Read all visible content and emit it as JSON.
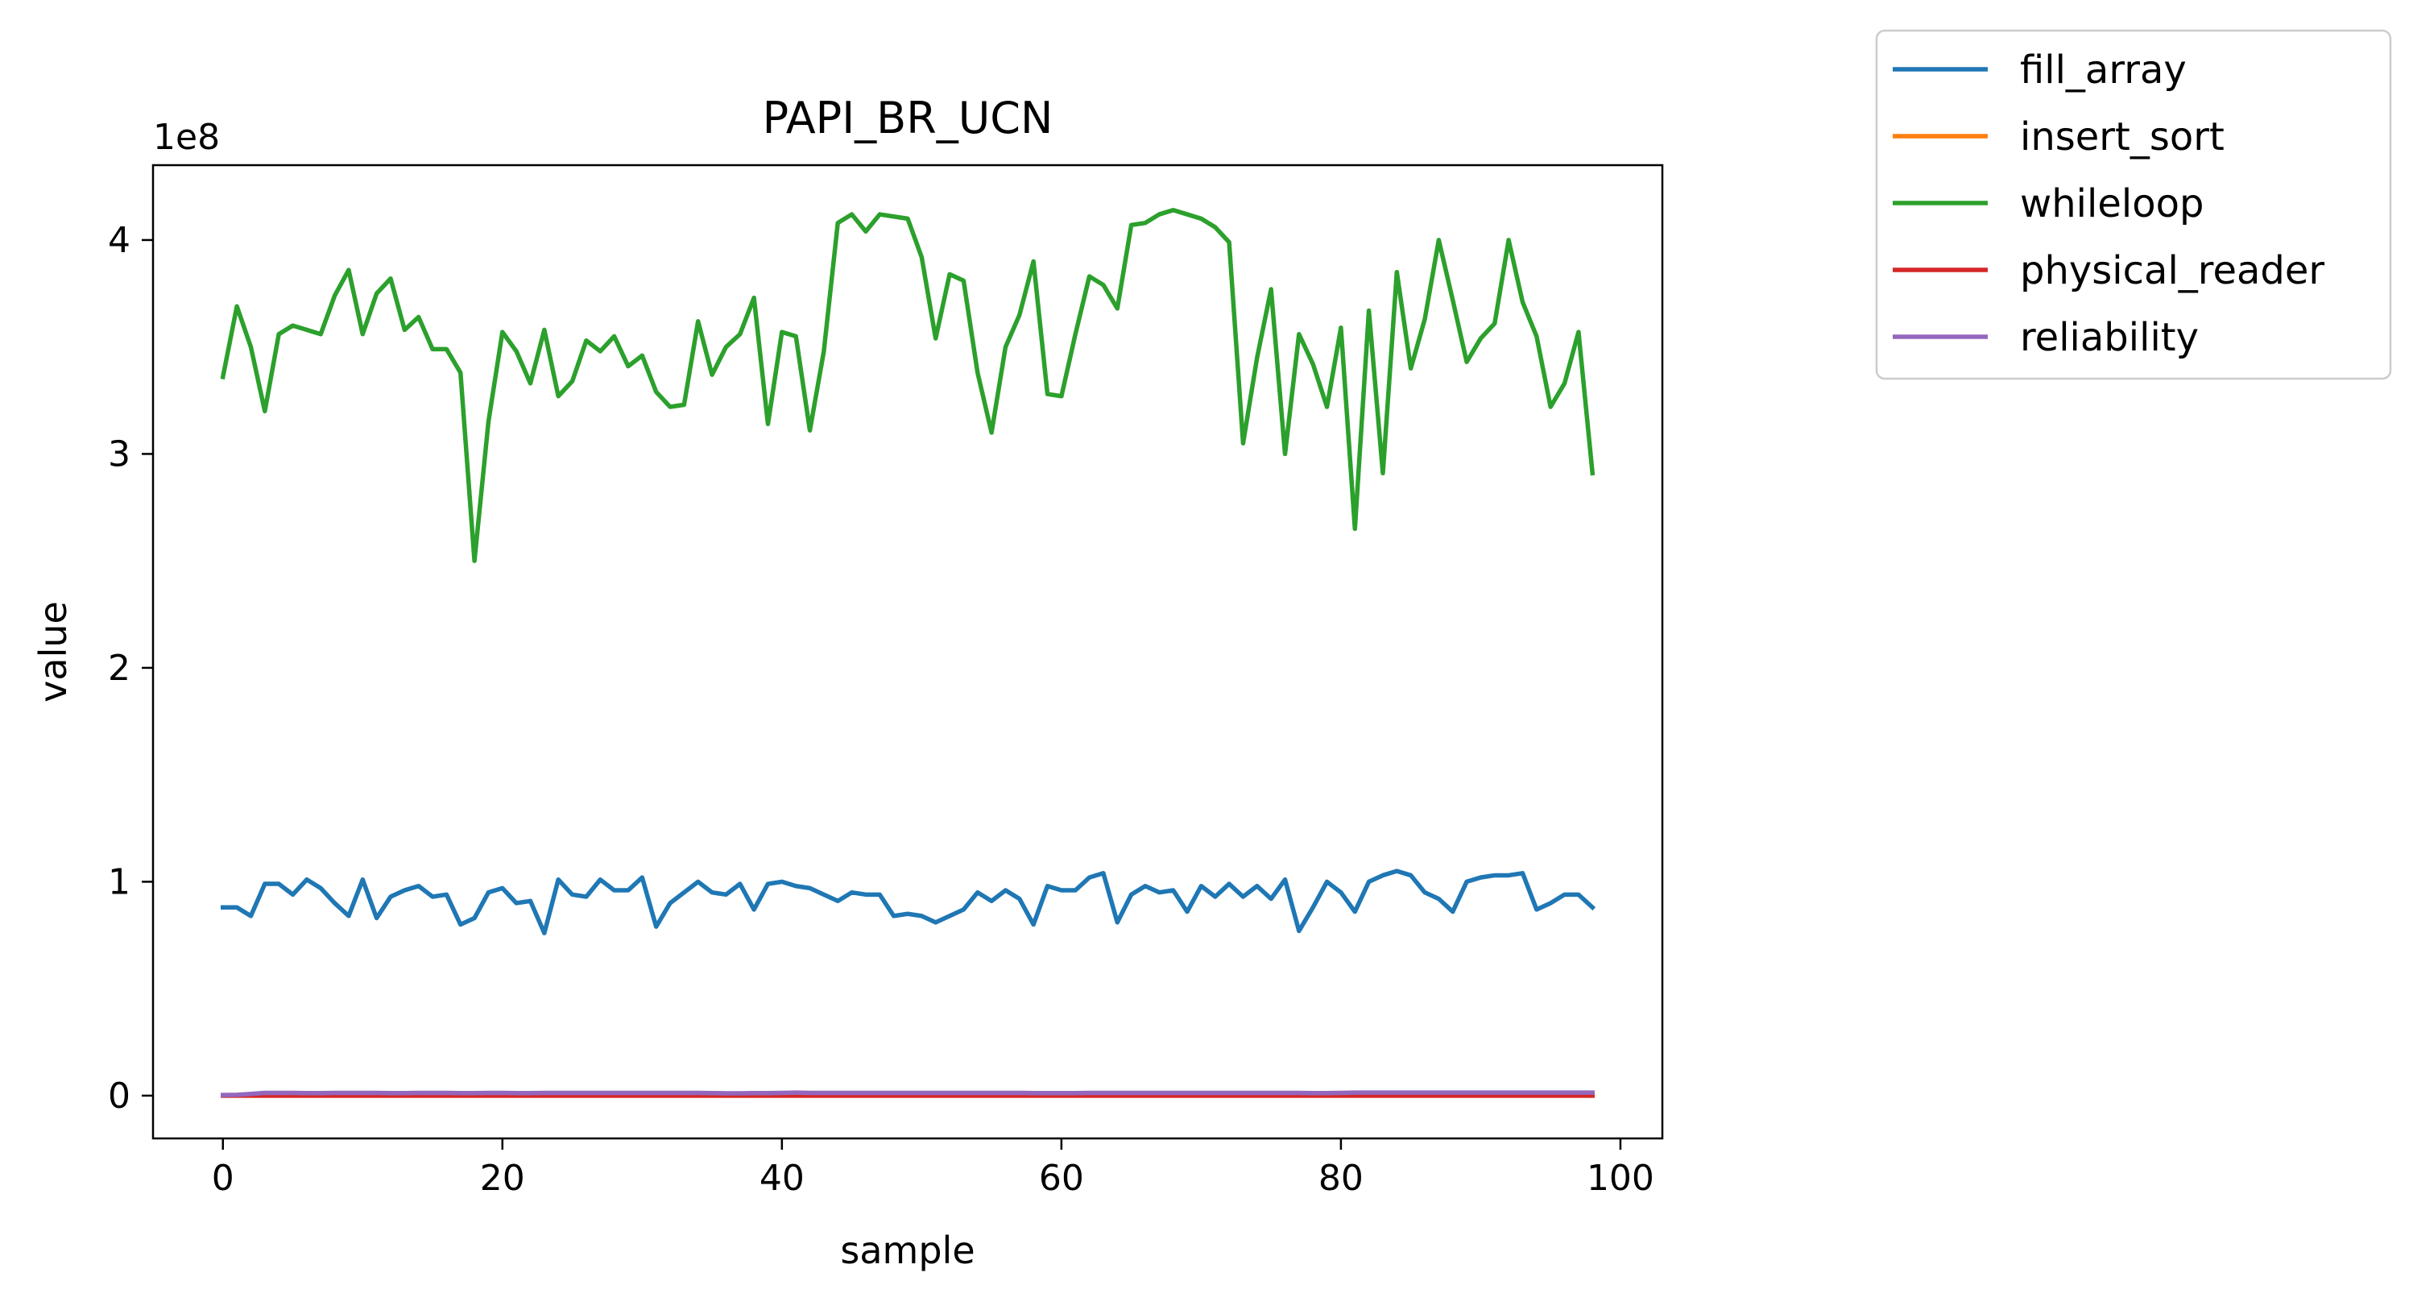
{
  "chart_data": {
    "type": "line",
    "title": "PAPI_BR_UCN",
    "xlabel": "sample",
    "ylabel": "value",
    "y_offset_text": "1e8",
    "xlim": [
      -5,
      103
    ],
    "ylim": [
      -0.2,
      4.35
    ],
    "y_units_multiplier": 100000000,
    "xticks": [
      0,
      20,
      40,
      60,
      80,
      100
    ],
    "xtick_labels": [
      "0",
      "20",
      "40",
      "60",
      "80",
      "100"
    ],
    "yticks": [
      0,
      1,
      2,
      3,
      4
    ],
    "ytick_labels": [
      "0",
      "1",
      "2",
      "3",
      "4"
    ],
    "grid": false,
    "legend_position": "outside-top-right",
    "series": [
      {
        "name": "fill_array",
        "color": "#1f77b4",
        "values": [
          0.88,
          0.88,
          0.84,
          0.99,
          0.99,
          0.94,
          1.01,
          0.97,
          0.9,
          0.84,
          1.01,
          0.83,
          0.93,
          0.96,
          0.98,
          0.93,
          0.94,
          0.8,
          0.83,
          0.95,
          0.97,
          0.9,
          0.91,
          0.76,
          1.01,
          0.94,
          0.93,
          1.01,
          0.96,
          0.96,
          1.02,
          0.79,
          0.9,
          0.95,
          1.0,
          0.95,
          0.94,
          0.99,
          0.87,
          0.99,
          1.0,
          0.98,
          0.97,
          0.94,
          0.91,
          0.95,
          0.94,
          0.94,
          0.84,
          0.85,
          0.84,
          0.81,
          0.84,
          0.87,
          0.95,
          0.91,
          0.96,
          0.92,
          0.8,
          0.98,
          0.96,
          0.96,
          1.02,
          1.04,
          0.81,
          0.94,
          0.98,
          0.95,
          0.96,
          0.86,
          0.98,
          0.93,
          0.99,
          0.93,
          0.98,
          0.92,
          1.01,
          0.77,
          0.88,
          1.0,
          0.95,
          0.86,
          1.0,
          1.03,
          1.05,
          1.03,
          0.95,
          0.92,
          0.86,
          1.0,
          1.02,
          1.03,
          1.03,
          1.04,
          0.87,
          0.9,
          0.94,
          0.94,
          0.88
        ]
      },
      {
        "name": "insert_sort",
        "color": "#ff7f0e",
        "values": [
          0.0,
          0.0,
          0.0,
          0.0,
          0.0,
          0.0,
          0.0,
          0.0,
          0.0,
          0.0,
          0.0,
          0.0,
          0.0,
          0.0,
          0.0,
          0.0,
          0.0,
          0.0,
          0.0,
          0.0,
          0.0,
          0.0,
          0.0,
          0.0,
          0.0,
          0.0,
          0.0,
          0.0,
          0.0,
          0.0,
          0.0,
          0.0,
          0.0,
          0.0,
          0.0,
          0.0,
          0.0,
          0.0,
          0.0,
          0.0,
          0.0,
          0.0,
          0.0,
          0.0,
          0.0,
          0.0,
          0.0,
          0.0,
          0.0,
          0.0,
          0.0,
          0.0,
          0.0,
          0.0,
          0.0,
          0.0,
          0.0,
          0.0,
          0.0,
          0.0,
          0.0,
          0.0,
          0.0,
          0.0,
          0.0,
          0.0,
          0.0,
          0.0,
          0.0,
          0.0,
          0.0,
          0.0,
          0.0,
          0.0,
          0.0,
          0.0,
          0.0,
          0.0,
          0.0,
          0.0,
          0.0,
          0.0,
          0.0,
          0.0,
          0.0,
          0.0,
          0.0,
          0.0,
          0.0,
          0.0,
          0.0,
          0.0,
          0.0,
          0.0,
          0.0,
          0.0,
          0.0,
          0.0,
          0.0
        ]
      },
      {
        "name": "whileloop",
        "color": "#2ca02c",
        "values": [
          3.36,
          3.69,
          3.5,
          3.2,
          3.56,
          3.6,
          3.58,
          3.56,
          3.74,
          3.86,
          3.56,
          3.75,
          3.82,
          3.58,
          3.64,
          3.49,
          3.49,
          3.38,
          2.5,
          3.15,
          3.57,
          3.48,
          3.33,
          3.58,
          3.27,
          3.34,
          3.53,
          3.48,
          3.55,
          3.41,
          3.46,
          3.29,
          3.22,
          3.23,
          3.62,
          3.37,
          3.5,
          3.56,
          3.73,
          3.14,
          3.57,
          3.55,
          3.11,
          3.48,
          4.08,
          4.12,
          4.04,
          4.12,
          4.11,
          4.1,
          3.92,
          3.54,
          3.84,
          3.81,
          3.38,
          3.1,
          3.5,
          3.65,
          3.9,
          3.28,
          3.27,
          3.56,
          3.83,
          3.79,
          3.68,
          4.07,
          4.08,
          4.12,
          4.14,
          4.12,
          4.1,
          4.06,
          3.99,
          3.05,
          3.45,
          3.77,
          3.0,
          3.56,
          3.42,
          3.22,
          3.59,
          2.65,
          3.67,
          2.91,
          3.85,
          3.4,
          3.63,
          4.0,
          3.72,
          3.43,
          3.54,
          3.61,
          4.0,
          3.71,
          3.55,
          3.22,
          3.33,
          3.57,
          2.91
        ]
      },
      {
        "name": "physical_reader",
        "color": "#d62728",
        "values": [
          0.0,
          0.0,
          0.0,
          0.0,
          0.0,
          0.0,
          0.0,
          0.0,
          0.0,
          0.0,
          0.0,
          0.0,
          0.0,
          0.0,
          0.0,
          0.0,
          0.0,
          0.0,
          0.0,
          0.0,
          0.0,
          0.0,
          0.0,
          0.0,
          0.0,
          0.0,
          0.0,
          0.0,
          0.0,
          0.0,
          0.0,
          0.0,
          0.0,
          0.0,
          0.0,
          0.0,
          0.0,
          0.0,
          0.0,
          0.0,
          0.0,
          0.0,
          0.0,
          0.0,
          0.0,
          0.0,
          0.0,
          0.0,
          0.0,
          0.0,
          0.0,
          0.0,
          0.0,
          0.0,
          0.0,
          0.0,
          0.0,
          0.0,
          0.0,
          0.0,
          0.0,
          0.0,
          0.0,
          0.0,
          0.0,
          0.0,
          0.0,
          0.0,
          0.0,
          0.0,
          0.0,
          0.0,
          0.0,
          0.0,
          0.0,
          0.0,
          0.0,
          0.0,
          0.0,
          0.0,
          0.0,
          0.0,
          0.0,
          0.0,
          0.0,
          0.0,
          0.0,
          0.0,
          0.0,
          0.0,
          0.0,
          0.0,
          0.0,
          0.0,
          0.0,
          0.0,
          0.0,
          0.0,
          0.0
        ]
      },
      {
        "name": "reliability",
        "color": "#9467bd",
        "values": [
          0.003,
          0.004,
          0.008,
          0.013,
          0.013,
          0.013,
          0.012,
          0.012,
          0.013,
          0.013,
          0.013,
          0.013,
          0.012,
          0.012,
          0.013,
          0.013,
          0.013,
          0.012,
          0.012,
          0.013,
          0.013,
          0.012,
          0.012,
          0.013,
          0.013,
          0.013,
          0.013,
          0.013,
          0.013,
          0.013,
          0.013,
          0.013,
          0.013,
          0.013,
          0.013,
          0.012,
          0.011,
          0.011,
          0.012,
          0.012,
          0.013,
          0.014,
          0.013,
          0.013,
          0.013,
          0.013,
          0.013,
          0.013,
          0.013,
          0.013,
          0.013,
          0.013,
          0.013,
          0.013,
          0.013,
          0.013,
          0.013,
          0.013,
          0.012,
          0.012,
          0.012,
          0.012,
          0.013,
          0.013,
          0.013,
          0.013,
          0.013,
          0.013,
          0.013,
          0.013,
          0.013,
          0.013,
          0.013,
          0.013,
          0.013,
          0.013,
          0.013,
          0.013,
          0.012,
          0.012,
          0.013,
          0.014,
          0.014,
          0.014,
          0.014,
          0.014,
          0.014,
          0.014,
          0.014,
          0.014,
          0.014,
          0.014,
          0.014,
          0.014,
          0.014,
          0.014,
          0.014,
          0.014,
          0.014
        ]
      }
    ]
  }
}
